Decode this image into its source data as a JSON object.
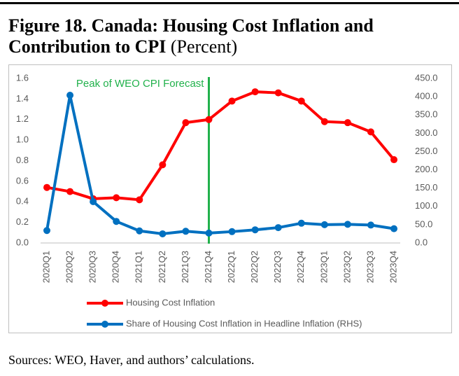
{
  "chart_data": {
    "type": "line",
    "title": "Figure 18. Canada: Housing Cost Inflation and Contribution to CPI",
    "subtitle": "(Percent)",
    "source": "Sources: WEO, Haver, and authors’ calculations.",
    "annotation": {
      "text": "Peak of WEO CPI Forecast",
      "category": "2021Q4",
      "color": "#21b14b"
    },
    "categories": [
      "2020Q1",
      "2020Q2",
      "2020Q3",
      "2020Q4",
      "2021Q1",
      "2021Q2",
      "2021Q3",
      "2021Q4",
      "2022Q1",
      "2022Q2",
      "2022Q3",
      "2022Q4",
      "2023Q1",
      "2023Q2",
      "2023Q3",
      "2023Q4"
    ],
    "series": [
      {
        "name": "Housing Cost Inflation",
        "color": "#ff0000",
        "axis": "y",
        "values": [
          0.54,
          0.5,
          0.43,
          0.44,
          0.42,
          0.76,
          1.17,
          1.2,
          1.38,
          1.47,
          1.46,
          1.38,
          1.18,
          1.17,
          1.08,
          0.81
        ]
      },
      {
        "name": "Share of Housing Cost Inflation in Headline Inflation (RHS)",
        "color": "#0070c0",
        "axis": "y2",
        "values": [
          34,
          404,
          113,
          59,
          33,
          25,
          32,
          27,
          31,
          36,
          42,
          54,
          50,
          51,
          49,
          39
        ]
      }
    ],
    "ylim": [
      0,
      1.6
    ],
    "yticks": [
      {
        "value": 0,
        "label": "0.0"
      },
      0.2,
      0.4,
      0.6,
      0.8,
      {
        "value": 1,
        "label": "1.0"
      },
      1.2,
      1.4,
      1.6
    ],
    "y2lim": [
      0,
      450
    ],
    "y2ticks": [
      {
        "value": 0,
        "label": "0.0"
      },
      {
        "value": 50,
        "label": "50.0"
      },
      {
        "value": 100,
        "label": "100.0"
      },
      {
        "value": 150,
        "label": "150.0"
      },
      {
        "value": 200,
        "label": "200.0"
      },
      {
        "value": 250,
        "label": "250.0"
      },
      {
        "value": 300,
        "label": "300.0"
      },
      {
        "value": 350,
        "label": "350.0"
      },
      {
        "value": 400,
        "label": "400.0"
      },
      {
        "value": 450,
        "label": "450.0"
      }
    ],
    "legend": "bottom-left"
  }
}
